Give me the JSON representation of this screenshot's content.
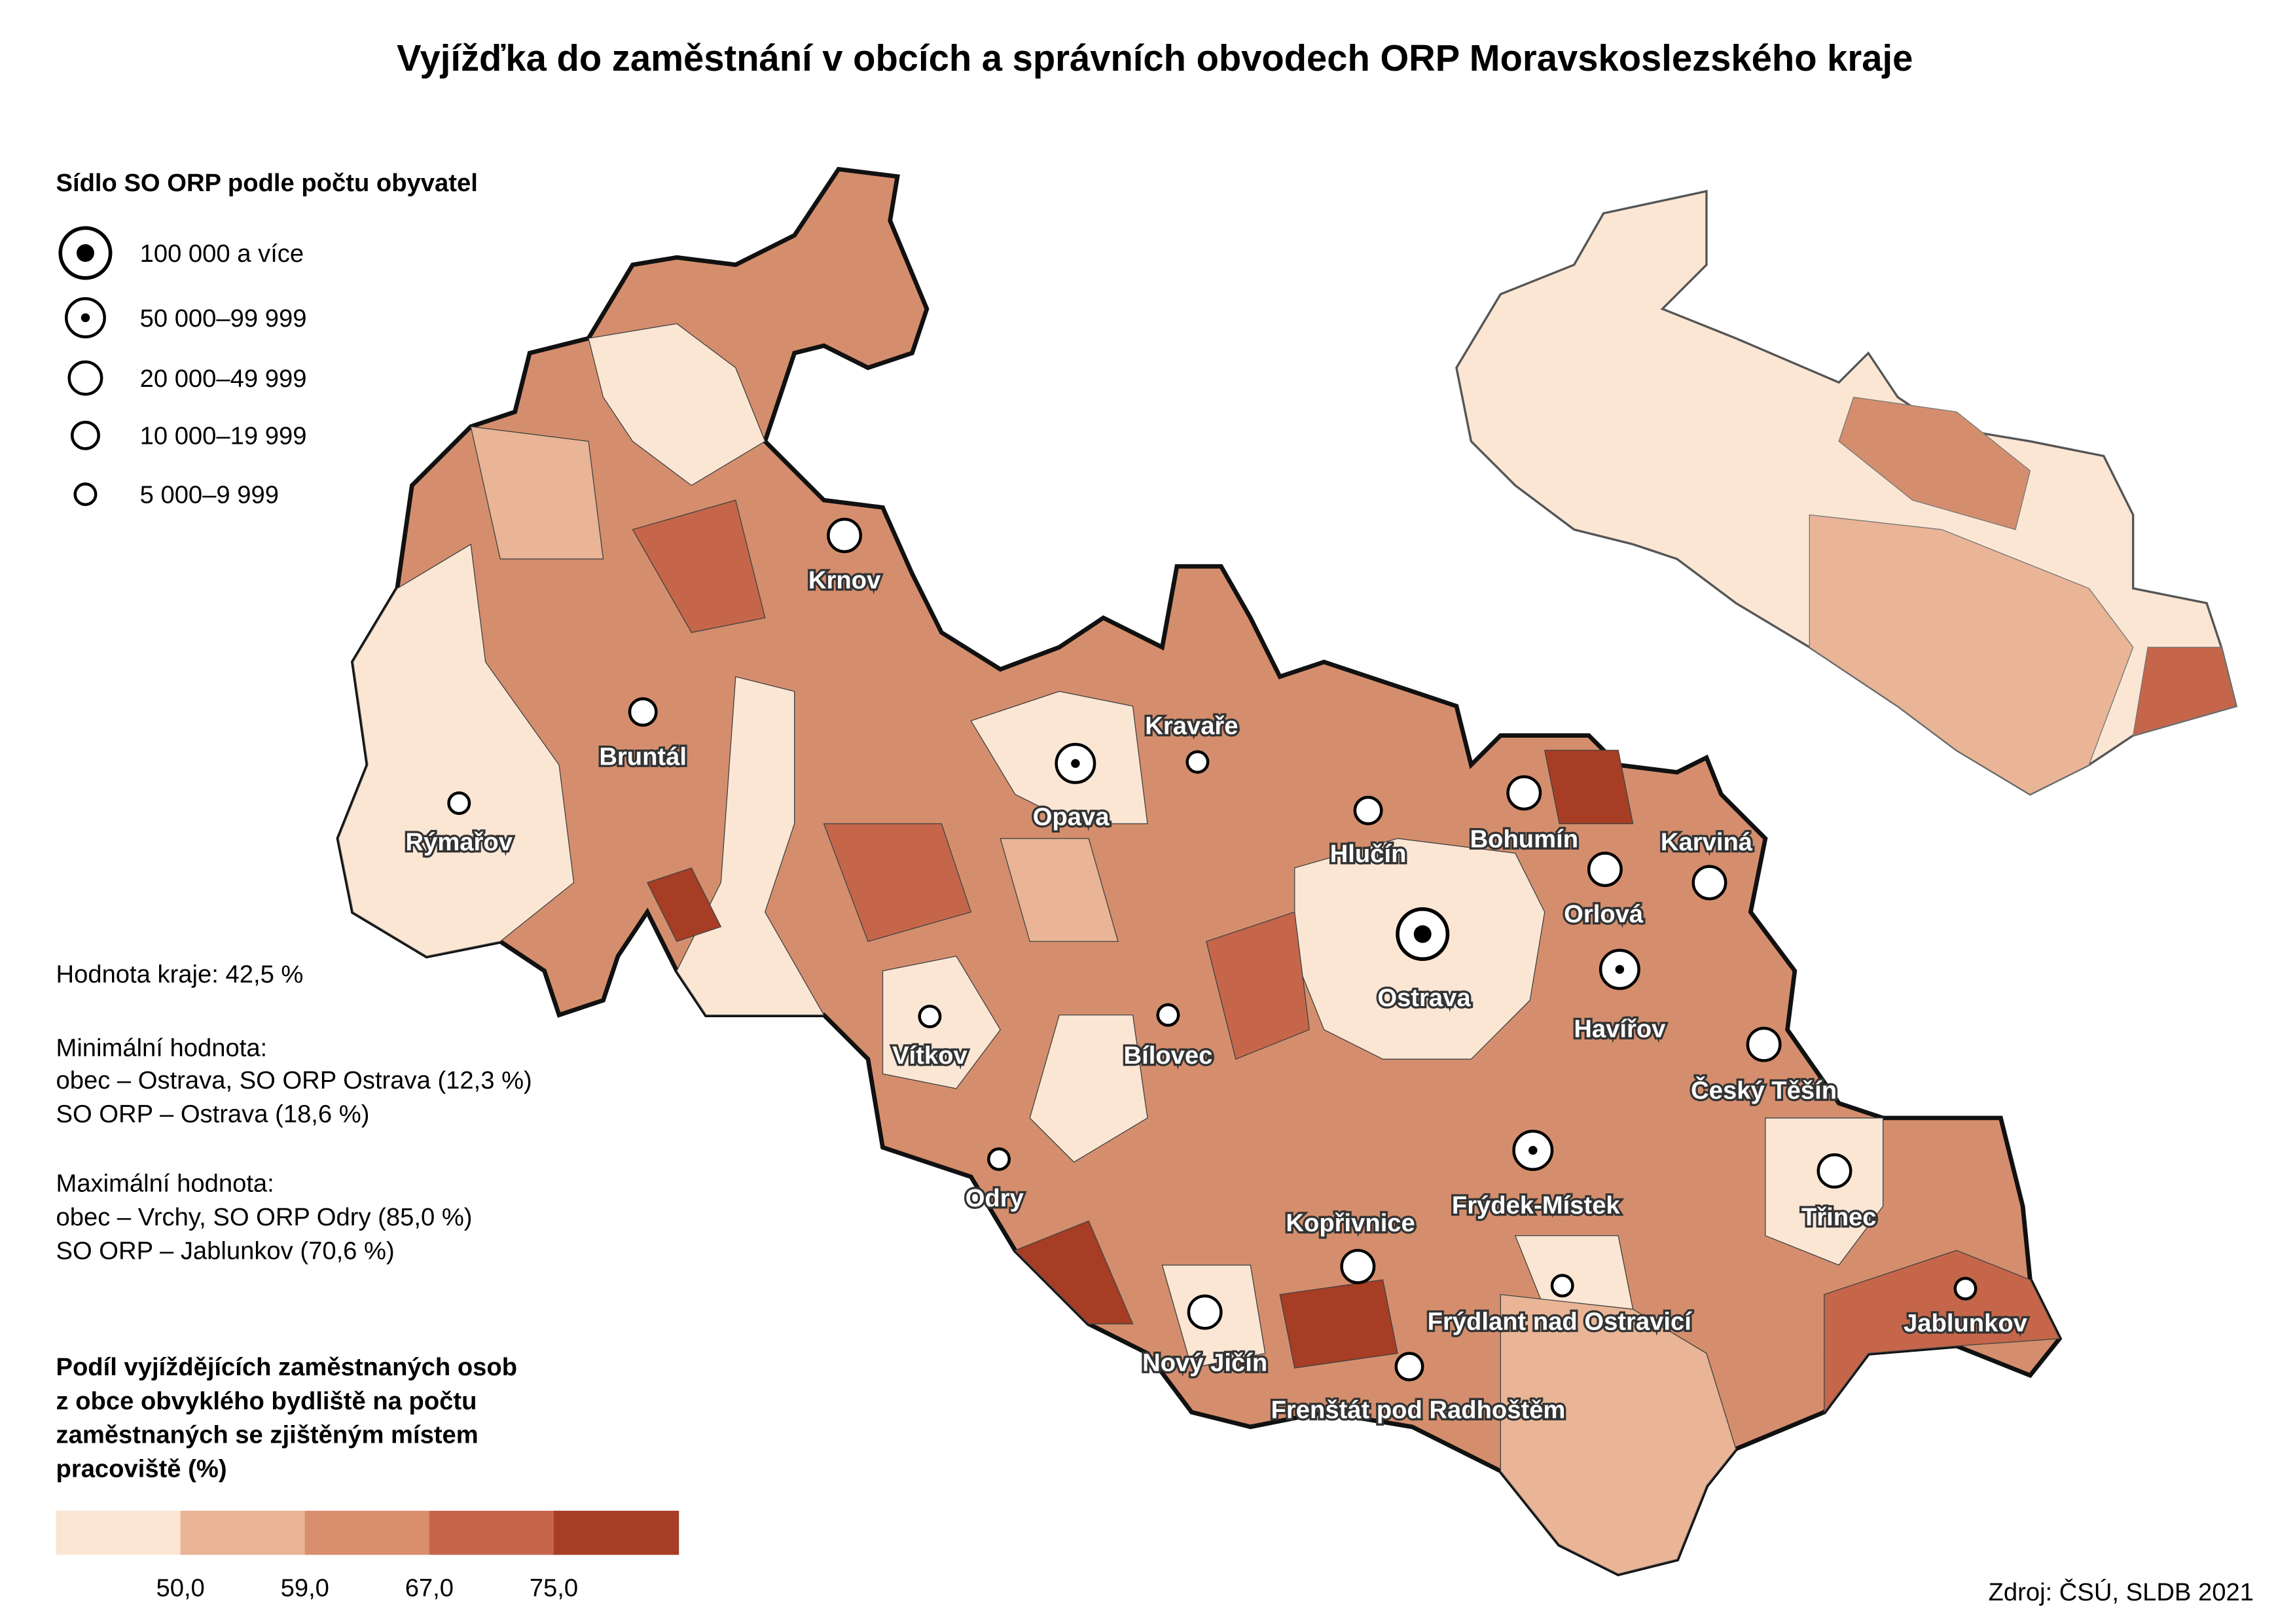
{
  "title": "Vyjížďka do zaměstnání v obcích a správních obvodech ORP Moravskoslezského kraje",
  "size_legend": {
    "title": "Sídlo SO ORP podle počtu obyvatel",
    "items": [
      "100 000 a více",
      "50 000–99 999",
      "20 000–49 999",
      "10 000–19 999",
      "5 000–9 999"
    ]
  },
  "cities": [
    "Krnov",
    "Bruntál",
    "Rýmařov",
    "Opava",
    "Kravaře",
    "Hlučín",
    "Bohumín",
    "Karviná",
    "Orlová",
    "Ostrava",
    "Havířov",
    "Vítkov",
    "Bílovec",
    "Český Těšín",
    "Odry",
    "Frýdek-Místek",
    "Kopřivnice",
    "Třinec",
    "Frýdlant nad Ostravicí",
    "Jablunkov",
    "Nový Jičín",
    "Frenštát pod Radhoštěm"
  ],
  "stats": [
    "Hodnota kraje: 42,5 %",
    "Minimální hodnota:",
    "obec – Ostrava, SO ORP Ostrava (12,3 %)",
    "SO ORP – Ostrava (18,6 %)",
    "Maximální hodnota:",
    "obec – Vrchy, SO ORP Odry (85,0 %)",
    "SO ORP – Jablunkov (70,6 %)"
  ],
  "color_legend": {
    "title": [
      "Podíl vyjíždějících zaměstnaných osob",
      "z obce obvyklého bydliště na počtu",
      "zaměstnaných se zjištěným místem",
      "pracoviště (%)"
    ],
    "colors": [
      "#fbe6d4",
      "#e9b596",
      "#d98e6e",
      "#c5664a",
      "#a63d24"
    ],
    "ticks": [
      {
        "value": 50,
        "label": "50,0"
      },
      {
        "value": 59,
        "label": "59,0"
      },
      {
        "value": 67,
        "label": "67,0"
      },
      {
        "value": 75,
        "label": "75,0"
      }
    ]
  },
  "source": "Zdroj: ČSÚ, SLDB 2021"
}
